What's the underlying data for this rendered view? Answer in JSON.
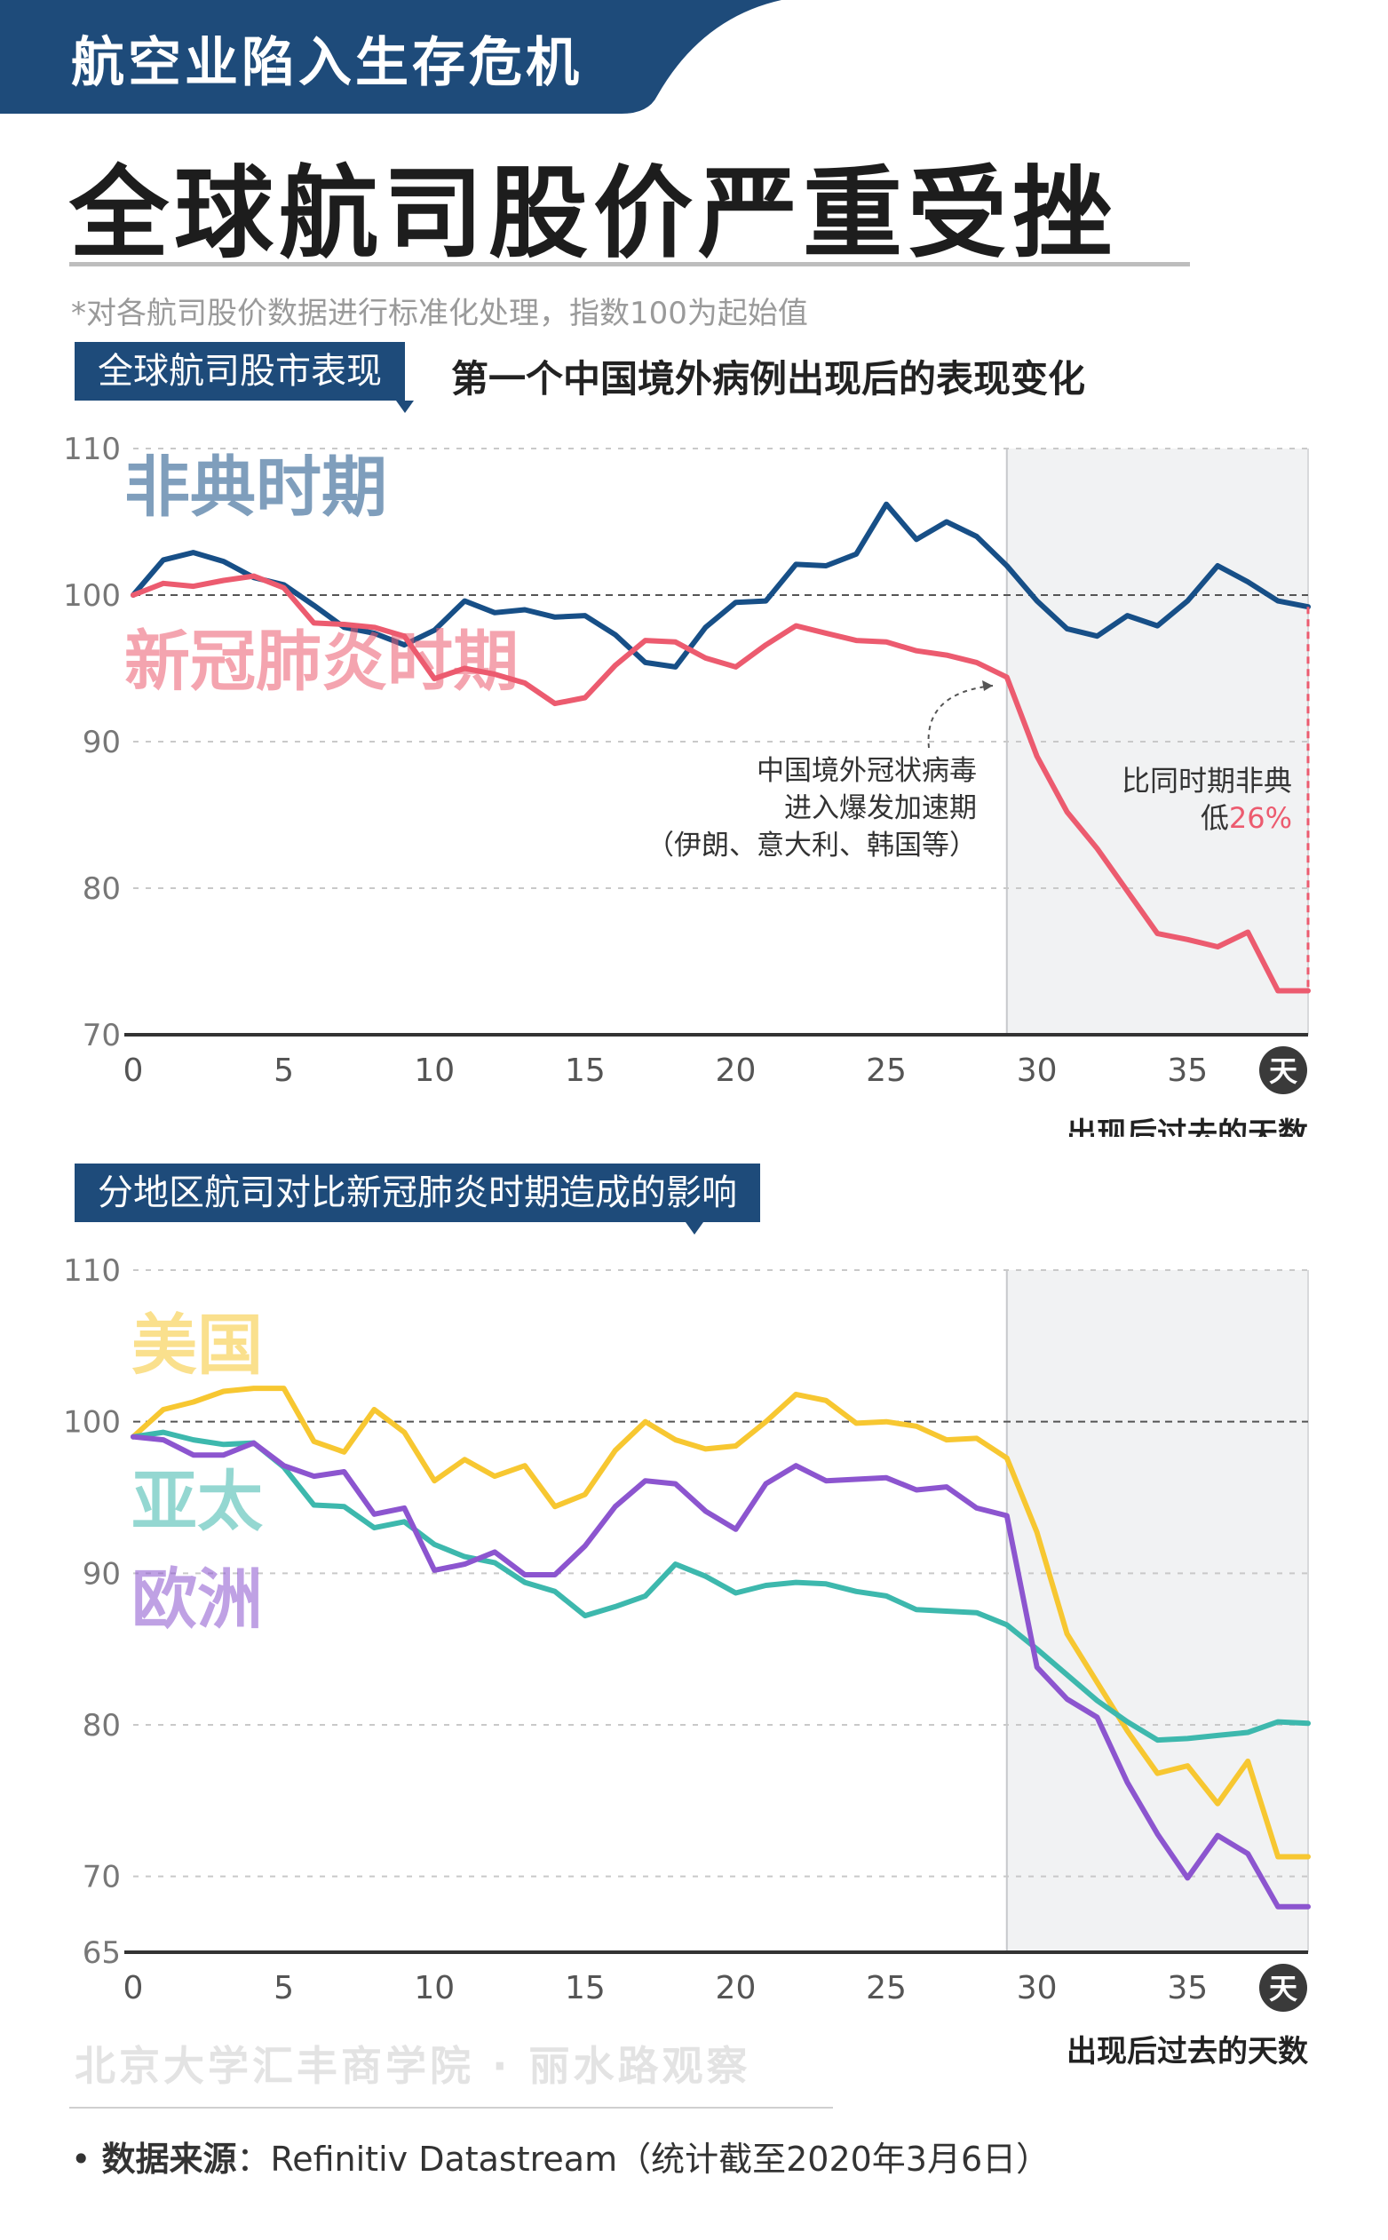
{
  "banner": {
    "text": "航空业陷入生存危机"
  },
  "title": "全球航司股价严重受挫",
  "note": "*对各航司股价数据进行标准化处理，指数100为起始值",
  "colors": {
    "navy": "#1e4b7a",
    "sars": "#174f87",
    "covid": "#ec5b6f",
    "us": "#f7c731",
    "apac": "#3db8ad",
    "eu": "#8c55cf"
  },
  "section1": {
    "tag": "全球航司股市表现",
    "subtitle": "第一个中国境外病例出现后的表现变化"
  },
  "section2": {
    "tag": "分地区航司对比新冠肺炎时期造成的影响"
  },
  "footer": {
    "watermark": "北京大学汇丰商学院 · 丽水路观察",
    "source_label": "数据来源",
    "source_text": "：Refinitiv Datastream（统计截至2020年3月6日）"
  },
  "chart_data": [
    {
      "type": "line",
      "title": "全球航司股市表现",
      "xlabel": "出现后过去的天数",
      "x_unit_badge": "天",
      "ylim": [
        70,
        110
      ],
      "xlim": [
        0,
        39
      ],
      "yticks": [
        70,
        80,
        90,
        100,
        110
      ],
      "xticks": [
        0,
        5,
        10,
        15,
        20,
        25,
        30,
        35
      ],
      "reference_line": 100,
      "shaded_from_x": 29,
      "series": [
        {
          "name": "非典时期",
          "color": "#174f87",
          "x": [
            0,
            1,
            2,
            3,
            4,
            5,
            6,
            7,
            8,
            9,
            10,
            11,
            12,
            13,
            14,
            15,
            16,
            17,
            18,
            19,
            20,
            21,
            22,
            23,
            24,
            25,
            26,
            27,
            28,
            29,
            30,
            31,
            32,
            33,
            34,
            35,
            36,
            37,
            38,
            39
          ],
          "values": [
            100,
            102.4,
            102.9,
            102.3,
            101.2,
            100.7,
            99.3,
            97.8,
            97.4,
            96.6,
            97.6,
            99.6,
            98.8,
            99.0,
            98.5,
            98.6,
            97.3,
            95.4,
            95.1,
            97.8,
            99.5,
            99.6,
            102.1,
            102.0,
            102.8,
            106.2,
            103.8,
            105.0,
            104.0,
            102.0,
            99.6,
            97.7,
            97.2,
            98.6,
            97.9,
            99.6,
            102.0,
            100.9,
            99.6,
            99.2
          ]
        },
        {
          "name": "新冠肺炎时期",
          "color": "#ec5b6f",
          "x": [
            0,
            1,
            2,
            3,
            4,
            5,
            6,
            7,
            8,
            9,
            10,
            11,
            12,
            13,
            14,
            15,
            16,
            17,
            18,
            19,
            20,
            21,
            22,
            23,
            24,
            25,
            26,
            27,
            28,
            29,
            30,
            31,
            32,
            33,
            34,
            35,
            36,
            37,
            38,
            39
          ],
          "values": [
            100,
            100.8,
            100.6,
            101.0,
            101.3,
            100.5,
            98.1,
            98.0,
            97.8,
            97.2,
            94.3,
            95.0,
            94.6,
            94.0,
            92.6,
            93.0,
            95.2,
            96.9,
            96.8,
            95.7,
            95.1,
            96.6,
            97.9,
            97.4,
            96.9,
            96.8,
            96.2,
            95.9,
            95.4,
            94.4,
            89.0,
            85.2,
            82.7,
            79.8,
            76.9,
            76.5,
            76.0,
            77.0,
            73.0,
            73.0
          ]
        }
      ],
      "annotations": [
        {
          "lines": [
            "中国境外冠状病毒",
            "进入爆发加速期",
            "（伊朗、意大利、韩国等）"
          ]
        },
        {
          "lines": [
            "比同时期非典",
            "低"
          ],
          "highlight": "26%"
        }
      ]
    },
    {
      "type": "line",
      "title": "分地区航司对比新冠肺炎时期造成的影响",
      "xlabel": "出现后过去的天数",
      "x_unit_badge": "天",
      "ylim": [
        65,
        110
      ],
      "xlim": [
        0,
        39
      ],
      "yticks": [
        65,
        70,
        80,
        90,
        100,
        110
      ],
      "xticks": [
        0,
        5,
        10,
        15,
        20,
        25,
        30,
        35
      ],
      "reference_line": 100,
      "shaded_from_x": 29,
      "series": [
        {
          "name": "美国",
          "color": "#f7c731",
          "x": [
            0,
            1,
            2,
            3,
            4,
            5,
            6,
            7,
            8,
            9,
            10,
            11,
            12,
            13,
            14,
            15,
            16,
            17,
            18,
            19,
            20,
            21,
            22,
            23,
            24,
            25,
            26,
            27,
            28,
            29,
            30,
            31,
            32,
            33,
            34,
            35,
            36,
            37,
            38,
            39
          ],
          "values": [
            99,
            100.8,
            101.3,
            102.0,
            102.2,
            102.2,
            98.7,
            98.0,
            100.8,
            99.3,
            96.1,
            97.5,
            96.4,
            97.1,
            94.4,
            95.2,
            98.1,
            100.0,
            98.8,
            98.2,
            98.4,
            100.0,
            101.8,
            101.4,
            99.9,
            100.0,
            99.7,
            98.8,
            98.9,
            97.6,
            92.7,
            86.0,
            82.8,
            79.6,
            76.8,
            77.3,
            74.8,
            77.6,
            71.3,
            71.3
          ]
        },
        {
          "name": "亚太",
          "color": "#3db8ad",
          "x": [
            0,
            1,
            2,
            3,
            4,
            5,
            6,
            7,
            8,
            9,
            10,
            11,
            12,
            13,
            14,
            15,
            16,
            17,
            18,
            19,
            20,
            21,
            22,
            23,
            24,
            25,
            26,
            27,
            28,
            29,
            30,
            31,
            32,
            33,
            34,
            35,
            36,
            37,
            38,
            39
          ],
          "values": [
            99,
            99.3,
            98.8,
            98.5,
            98.6,
            97.0,
            94.5,
            94.4,
            93.0,
            93.4,
            91.9,
            91.1,
            90.7,
            89.4,
            88.8,
            87.2,
            87.8,
            88.5,
            90.6,
            89.8,
            88.7,
            89.2,
            89.4,
            89.3,
            88.8,
            88.5,
            87.6,
            87.5,
            87.4,
            86.6,
            85.0,
            83.3,
            81.6,
            80.2,
            79.0,
            79.1,
            79.3,
            79.5,
            80.2,
            80.1
          ]
        },
        {
          "name": "欧洲",
          "color": "#8c55cf",
          "x": [
            0,
            1,
            2,
            3,
            4,
            5,
            6,
            7,
            8,
            9,
            10,
            11,
            12,
            13,
            14,
            15,
            16,
            17,
            18,
            19,
            20,
            21,
            22,
            23,
            24,
            25,
            26,
            27,
            28,
            29,
            30,
            31,
            32,
            33,
            34,
            35,
            36,
            37,
            38,
            39
          ],
          "values": [
            99,
            98.8,
            97.8,
            97.8,
            98.6,
            97.1,
            96.4,
            96.7,
            93.9,
            94.3,
            90.2,
            90.6,
            91.4,
            89.9,
            89.9,
            91.8,
            94.4,
            96.1,
            95.9,
            94.1,
            92.9,
            95.9,
            97.1,
            96.1,
            96.2,
            96.3,
            95.5,
            95.7,
            94.3,
            93.8,
            83.8,
            81.7,
            80.5,
            76.2,
            72.8,
            69.9,
            72.7,
            71.5,
            68.0,
            68.0
          ]
        }
      ]
    }
  ]
}
